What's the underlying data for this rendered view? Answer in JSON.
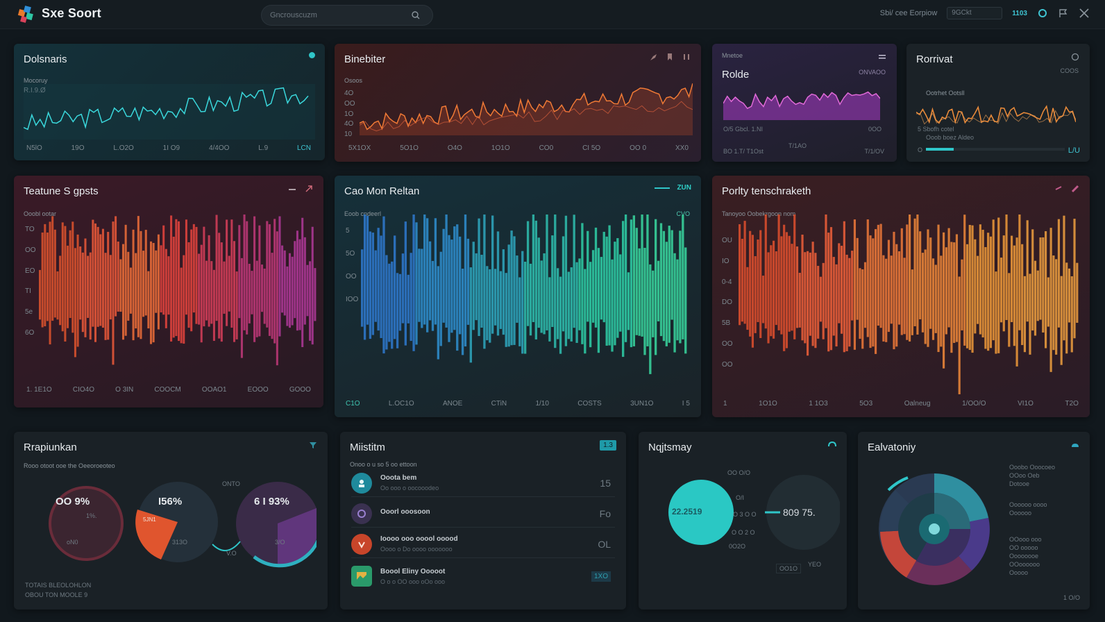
{
  "app": {
    "title": "Sxe Soort"
  },
  "search": {
    "placeholder": "Gncrouscuzm"
  },
  "topbar": {
    "status": "Sbi/ cee Eorpiow",
    "field": "9GCkt",
    "badge": "1103"
  },
  "panels": {
    "p1": {
      "title": "Dolsnaris",
      "sub1": "Mocoruy",
      "sub2": "R.I.9.Ø",
      "ticks": [
        "N5lO",
        "19O",
        "L.O2O",
        "1I O9",
        "4/4OO",
        "L.9",
        "LCN"
      ]
    },
    "p2": {
      "title": "Binebiter",
      "sub": "Osoos",
      "yticks": [
        "4O",
        "OO",
        "1O",
        "4O",
        "10"
      ],
      "ticks": [
        "5X1OX",
        "5O1O",
        "O4O",
        "1O1O",
        "CO0",
        "CI 5O",
        "OO 0",
        "XX0"
      ]
    },
    "p3": {
      "title": "Rolde",
      "header": "Mnetoe",
      "badge": "ONVAOO",
      "sub": "O/5 Gbcl. 1.NI",
      "sub2": "0OO",
      "foot1": "BO 1.T/ T1Ost",
      "foot2": "T/1AO",
      "foot3": "T/1/OV"
    },
    "p4": {
      "title": "Rorrivat",
      "badge": "COOS",
      "legend1": "Ootrhet Ootsll",
      "legend2": "5 Sbofh cotel",
      "legend3": "Ooob boez   Aldeo",
      "foot": "O",
      "foot2": "L/U"
    },
    "p5": {
      "title": "Teatune S gpsts",
      "sub": "Ooobl ootar",
      "yticks": [
        "TO",
        "OO",
        "EO",
        "TI",
        "5e",
        "6O"
      ],
      "ticks": [
        "1. 1E1O",
        "CIO4O",
        "O 3IN",
        "COOCM",
        "OOAO1",
        "EOOO",
        "GOOO"
      ]
    },
    "p6": {
      "title": "Cao Mon Reltan",
      "badge": "ZUN",
      "sub": "Eoob cndeerl",
      "sub2": "CVO",
      "yticks": [
        "5",
        "5O",
        "OO",
        "IOO"
      ],
      "ticks": [
        "C1O",
        "L.OC1O",
        "ANOE",
        "CTiN",
        "1/10",
        "COSTS",
        "3UN1O",
        "I 5"
      ]
    },
    "p7": {
      "title": "Porlty tenschraketh",
      "sub": "Tanoyoo Oobekrgoon nom",
      "yticks": [
        "OU",
        "IO",
        "0-4",
        "DO",
        "5B",
        "OO",
        "OO"
      ],
      "ticks": [
        "1",
        "1O1O",
        "1 1O3",
        "5O3",
        "Oalneug",
        "1/OO/O",
        "VI1O",
        "T2O"
      ]
    },
    "p8": {
      "title": "Rrapiunkan",
      "sub": "Rooo otoot ooe the Oeeoroeoteo",
      "g1": "OO 9%",
      "g1b": "1%.",
      "g1c": "oN0",
      "g2": "I56%",
      "g2b": "5JN1",
      "g2c": "313O",
      "g3": "6  I 93%",
      "g3b": "3/O",
      "mid1": "ONTO",
      "mid2": "V.O",
      "foot1": "TOTAIS BLEOLOHLON",
      "foot2": "OBOU TON MOOLE 9"
    },
    "p9": {
      "title": "Miistitm",
      "badge": "1.3",
      "sub": "Onoo o u so 5 oo ettoon",
      "items": [
        {
          "label": "Ooota bem",
          "sub": "Oo ooo o oocooodeo",
          "value": "15"
        },
        {
          "label": "Ooorl ooosoon",
          "sub": "",
          "value": "Fo"
        },
        {
          "label": "Ioooo ooo ooool ooood",
          "sub": "Oooo o Do oooo ooooooo",
          "value": "OL"
        },
        {
          "label": "Boool Eliny Ooooot",
          "sub": "O o o OO ooo oOo ooo",
          "value": "1XO"
        }
      ]
    },
    "p10": {
      "title": "Nqjtsmay",
      "g1": "22.2519",
      "g2": "809 75.",
      "s1": "OO O/O",
      "s2": "O/I",
      "s3": "O 3 O O",
      "s4": "O O 2 O",
      "s5": "0O2O",
      "s6": "YEO",
      "s7": "OO1O"
    },
    "p11": {
      "title": "Ealvatoniy",
      "n1": "Ooobo Ooocoeo",
      "n2": "OOoo Oeb",
      "n3": "Dotooe",
      "n4": "Oooooo oooo",
      "n5": "Oooooo",
      "n6": "OOooo ooo",
      "n7": "OO ooooo",
      "n8": "Oooooooe",
      "n9": "OOoooooo",
      "n10": "Ooooo",
      "foot": "1 O/O"
    }
  },
  "colors": {
    "teal": "#2fc6c9",
    "orange": "#f06a35",
    "magenta": "#c2357a",
    "purple": "#8c3cb0",
    "cyan": "#2ad0c8"
  }
}
